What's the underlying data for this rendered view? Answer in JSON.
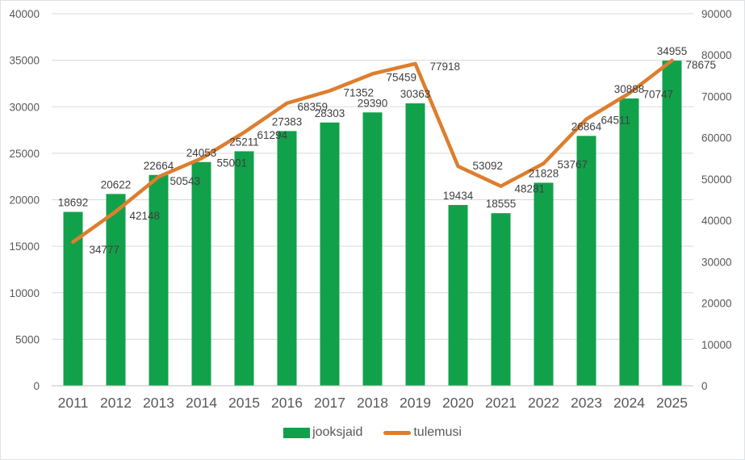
{
  "chart_data": {
    "type": "combo-bar-line",
    "title": "",
    "categories": [
      "2011",
      "2012",
      "2013",
      "2014",
      "2015",
      "2016",
      "2017",
      "2018",
      "2019",
      "2020",
      "2021",
      "2022",
      "2023",
      "2024",
      "2025"
    ],
    "series": [
      {
        "name": "jooksjaid",
        "type": "bar",
        "axis": "left",
        "color": "#12A14B",
        "values": [
          18692,
          20622,
          22664,
          24053,
          25211,
          27383,
          28303,
          29390,
          30363,
          19434,
          18555,
          21828,
          26864,
          30888,
          34955
        ]
      },
      {
        "name": "tulemusi",
        "type": "line",
        "axis": "right",
        "color": "#DD7E2E",
        "values": [
          34777,
          42148,
          50543,
          55001,
          61294,
          68359,
          71352,
          75459,
          77918,
          53092,
          48281,
          53767,
          64511,
          70747,
          78675
        ]
      }
    ],
    "left_axis": {
      "min": 0,
      "max": 40000,
      "ticks": [
        0,
        5000,
        10000,
        15000,
        20000,
        25000,
        30000,
        35000,
        40000
      ]
    },
    "right_axis": {
      "min": 0,
      "max": 90000,
      "ticks": [
        0,
        10000,
        20000,
        30000,
        40000,
        50000,
        60000,
        70000,
        80000,
        90000
      ]
    },
    "data_labels_shown": true,
    "grid": true,
    "legend_position": "bottom"
  },
  "colors": {
    "gridline": "#D9D9D9",
    "axis_line": "#BFBFBF",
    "tick_text": "#595959",
    "category_text": "#595959",
    "data_label_text": "#3F3F3F"
  }
}
